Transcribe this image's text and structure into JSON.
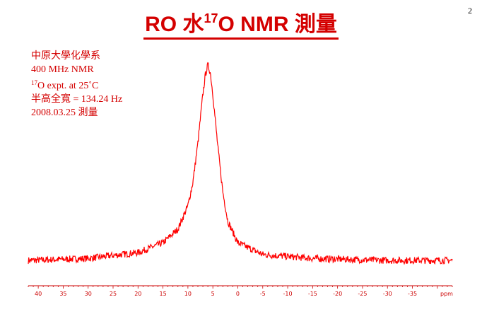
{
  "slide": {
    "page_number": "2",
    "title_prefix": "RO 水 ",
    "title_isotope_mass": "17",
    "title_suffix": "O NMR 測量"
  },
  "info": {
    "line1": "中原大學化學系",
    "line2": "400 MHz NMR",
    "line3_isotope_mass": "17",
    "line3_text": "O expt. at 25˚C",
    "line4": "半高全寬 = 134.24 Hz",
    "line5": "2008.03.25 測量"
  },
  "colors": {
    "accent": "#d40000",
    "trace": "#ff0000",
    "axis": "#cc0000"
  },
  "chart_data": {
    "type": "line",
    "title": "",
    "xlabel": "ppm",
    "ylabel": "",
    "x_reversed": true,
    "xlim": [
      42,
      -43
    ],
    "ylim": [
      -0.05,
      1.05
    ],
    "ticks": [
      40,
      35,
      30,
      25,
      20,
      15,
      10,
      5,
      0,
      -5,
      -10,
      -15,
      -20,
      -25,
      -30,
      -35
    ],
    "tick_labels": [
      "40",
      "35",
      "30",
      "25",
      "20",
      "15",
      "10",
      "5",
      "0",
      "-5",
      "-10",
      "-15",
      "-20",
      "-25",
      "-30",
      "-35"
    ],
    "series": [
      {
        "x": [
          42,
          30,
          20,
          15,
          12,
          10,
          9,
          8,
          7,
          6.5,
          6,
          5.5,
          5,
          4,
          3,
          2,
          0,
          -5,
          -15,
          -30,
          -43
        ],
        "y": [
          0.0,
          0.01,
          0.04,
          0.09,
          0.16,
          0.28,
          0.4,
          0.6,
          0.85,
          0.95,
          1.0,
          0.96,
          0.85,
          0.58,
          0.35,
          0.2,
          0.09,
          0.03,
          0.01,
          0.0,
          0.0
        ]
      }
    ],
    "grid": false,
    "legend": "none"
  }
}
